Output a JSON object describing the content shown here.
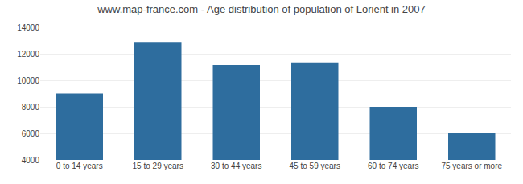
{
  "chart_data": {
    "type": "bar",
    "title": "www.map-france.com - Age distribution of population of Lorient in 2007",
    "categories": [
      "0 to 14 years",
      "15 to 29 years",
      "30 to 44 years",
      "45 to 59 years",
      "60 to 74 years",
      "75 years or more"
    ],
    "values": [
      9000,
      12900,
      11150,
      11350,
      8000,
      6000
    ],
    "color": "#2e6d9e",
    "ylim": [
      4000,
      14000
    ],
    "yticks": [
      4000,
      6000,
      8000,
      10000,
      12000,
      14000
    ],
    "grid": true
  }
}
